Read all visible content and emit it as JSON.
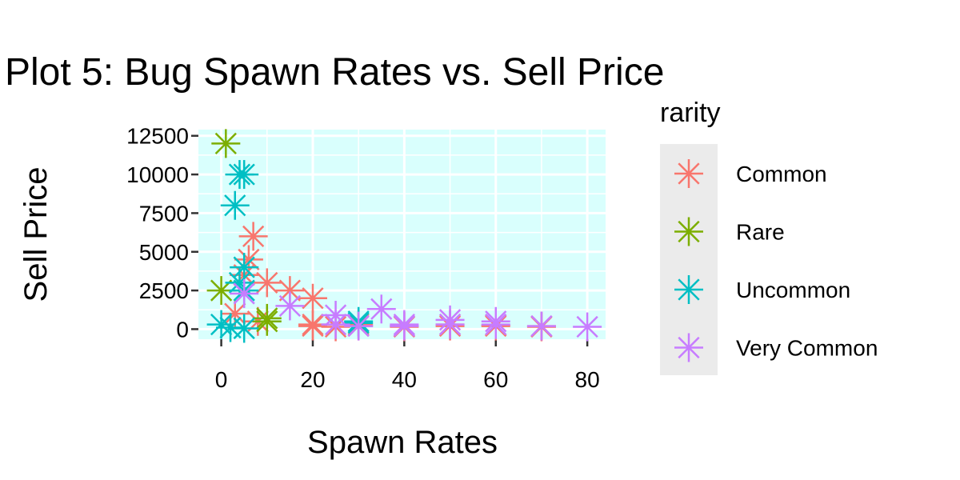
{
  "chart_data": {
    "type": "scatter",
    "title": "Plot 5: Bug Spawn Rates vs. Sell Price",
    "xlabel": "Spawn Rates",
    "ylabel": "Sell Price",
    "xlim": [
      -5,
      84
    ],
    "ylim": [
      -650,
      12900
    ],
    "x_ticks": [
      0,
      20,
      40,
      60,
      80
    ],
    "y_ticks": [
      0,
      2500,
      5000,
      7500,
      10000,
      12500
    ],
    "grid": true,
    "panel_background": "#d9fffd",
    "marker": "asterisk",
    "legend": {
      "title": "rarity",
      "position": "right",
      "background": "#ebebeb"
    },
    "series": [
      {
        "name": "Common",
        "color": "#f8766d",
        "points": [
          {
            "x": 7,
            "y": 6000
          },
          {
            "x": 6,
            "y": 4500
          },
          {
            "x": 5,
            "y": 3500
          },
          {
            "x": 10,
            "y": 3000
          },
          {
            "x": 15,
            "y": 2500
          },
          {
            "x": 20,
            "y": 2000
          },
          {
            "x": 3,
            "y": 1000
          },
          {
            "x": 8,
            "y": 500
          },
          {
            "x": 20,
            "y": 300
          },
          {
            "x": 20,
            "y": 200
          },
          {
            "x": 25,
            "y": 150
          },
          {
            "x": 30,
            "y": 300
          },
          {
            "x": 30,
            "y": 200
          },
          {
            "x": 40,
            "y": 200
          },
          {
            "x": 40,
            "y": 150
          },
          {
            "x": 50,
            "y": 300
          },
          {
            "x": 50,
            "y": 200
          },
          {
            "x": 60,
            "y": 250
          },
          {
            "x": 60,
            "y": 200
          },
          {
            "x": 70,
            "y": 200
          },
          {
            "x": 70,
            "y": 150
          }
        ]
      },
      {
        "name": "Rare",
        "color": "#7cae00",
        "points": [
          {
            "x": 1,
            "y": 12000
          },
          {
            "x": 0,
            "y": 2500
          },
          {
            "x": 10,
            "y": 700
          },
          {
            "x": 10,
            "y": 500
          }
        ]
      },
      {
        "name": "Uncommon",
        "color": "#00bfc4",
        "points": [
          {
            "x": 4,
            "y": 10000
          },
          {
            "x": 5,
            "y": 10000
          },
          {
            "x": 3,
            "y": 8000
          },
          {
            "x": 5,
            "y": 4000
          },
          {
            "x": 4,
            "y": 3000
          },
          {
            "x": 5,
            "y": 2500
          },
          {
            "x": 0,
            "y": 300
          },
          {
            "x": 2,
            "y": 100
          },
          {
            "x": 5,
            "y": 50
          },
          {
            "x": 30,
            "y": 500
          },
          {
            "x": 30,
            "y": 400
          }
        ]
      },
      {
        "name": "Very Common",
        "color": "#c77cff",
        "points": [
          {
            "x": 5,
            "y": 2300
          },
          {
            "x": 15,
            "y": 1500
          },
          {
            "x": 25,
            "y": 900
          },
          {
            "x": 35,
            "y": 1300
          },
          {
            "x": 25,
            "y": 300
          },
          {
            "x": 30,
            "y": 200
          },
          {
            "x": 40,
            "y": 300
          },
          {
            "x": 40,
            "y": 200
          },
          {
            "x": 50,
            "y": 600
          },
          {
            "x": 50,
            "y": 300
          },
          {
            "x": 60,
            "y": 500
          },
          {
            "x": 60,
            "y": 300
          },
          {
            "x": 70,
            "y": 200
          },
          {
            "x": 80,
            "y": 150
          }
        ]
      }
    ]
  }
}
